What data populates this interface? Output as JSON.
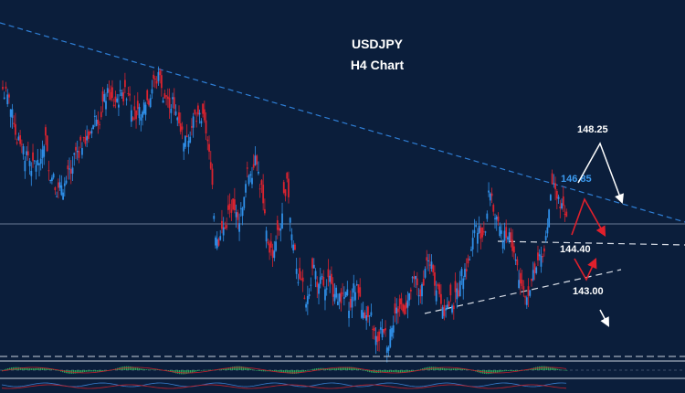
{
  "chart_data": {
    "type": "candlestick",
    "title": "USDJPY",
    "subtitle": "H4 Chart",
    "colors": {
      "background": "#0b1e3b",
      "bull": "#2f8fe8",
      "bear": "#d9232f",
      "resistance": "#2f7fd6",
      "label_blue": "#3c9bf0",
      "text": "#ffffff",
      "arrow_red": "#e0202c",
      "arrow_white": "#ffffff",
      "osc_bar": "#2fa35a",
      "osc_line": "#c2222c"
    },
    "levels": [
      {
        "name": "resistance",
        "value": 146.85,
        "label": "146.85"
      },
      {
        "name": "upper-target",
        "value": 148.25,
        "label": "148.25"
      },
      {
        "name": "support",
        "value": 144.4,
        "label": "144.40"
      },
      {
        "name": "lower-target",
        "value": 143.0,
        "label": "143.00"
      }
    ],
    "price_range": [
      141.8,
      149.4
    ],
    "close_prices": [
      147.5,
      146.9,
      146.5,
      146.2,
      146.0,
      146.0,
      146.6,
      145.8,
      145.5,
      145.6,
      145.8,
      146.3,
      146.5,
      146.6,
      147.0,
      147.3,
      147.5,
      147.3,
      147.5,
      147.6,
      147.2,
      147.0,
      147.4,
      147.8,
      147.9,
      147.5,
      147.4,
      147.0,
      146.6,
      146.9,
      147.0,
      146.9,
      146.0,
      144.4,
      144.6,
      145.0,
      144.9,
      145.0,
      145.8,
      146.1,
      145.5,
      144.2,
      144.1,
      144.6,
      145.6,
      144.3,
      143.5,
      143.0,
      143.7,
      143.4,
      143.3,
      143.4,
      143.1,
      143.0,
      142.9,
      143.3,
      142.7,
      142.6,
      142.2,
      142.4,
      142.1,
      142.8,
      142.9,
      143.1,
      143.4,
      143.2,
      143.8,
      143.6,
      143.2,
      142.9,
      143.0,
      143.2,
      143.7,
      144.1,
      144.6,
      144.5,
      145.4,
      144.8,
      144.4,
      144.5,
      144.0,
      143.3,
      143.2,
      143.6,
      143.9,
      144.6,
      145.5,
      145.0,
      144.8
    ]
  }
}
